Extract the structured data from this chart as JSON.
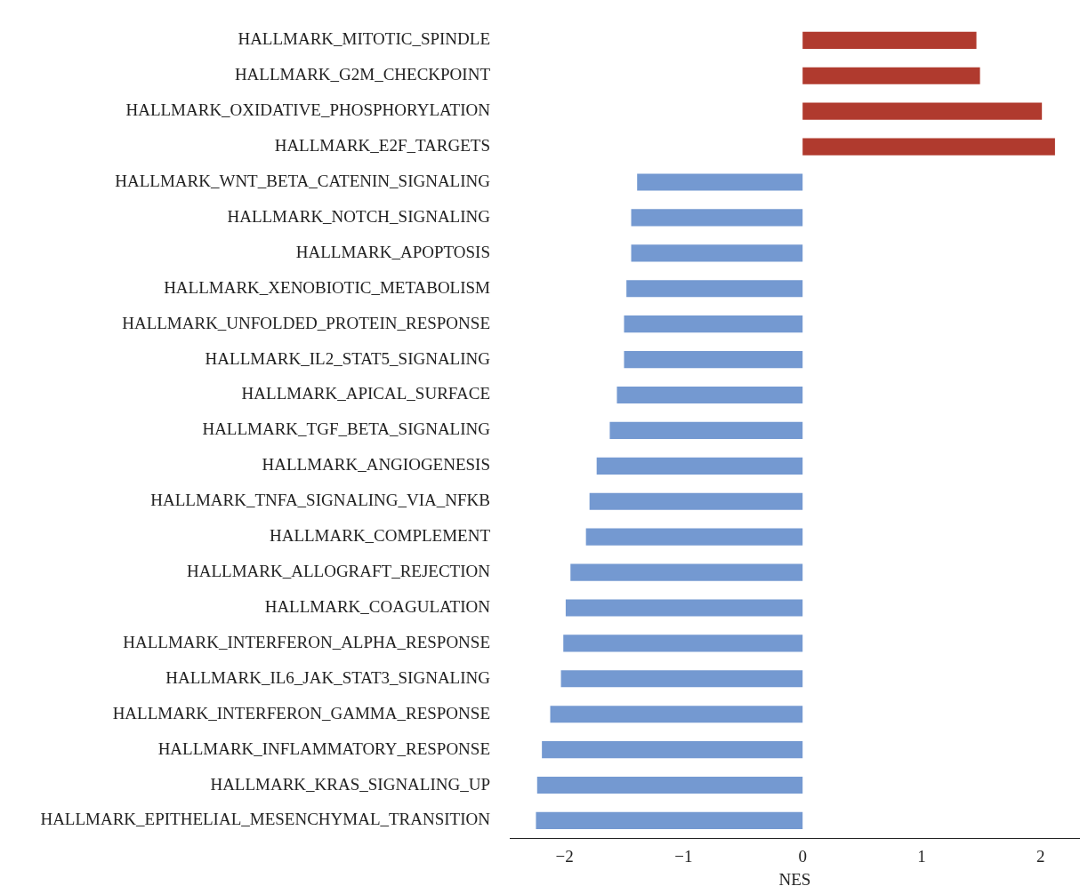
{
  "chart_data": {
    "type": "bar",
    "orientation": "horizontal",
    "xlabel": "NES",
    "categories": [
      "HALLMARK_MITOTIC_SPINDLE",
      "HALLMARK_G2M_CHECKPOINT",
      "HALLMARK_OXIDATIVE_PHOSPHORYLATION",
      "HALLMARK_E2F_TARGETS",
      "HALLMARK_WNT_BETA_CATENIN_SIGNALING",
      "HALLMARK_NOTCH_SIGNALING",
      "HALLMARK_APOPTOSIS",
      "HALLMARK_XENOBIOTIC_METABOLISM",
      "HALLMARK_UNFOLDED_PROTEIN_RESPONSE",
      "HALLMARK_IL2_STAT5_SIGNALING",
      "HALLMARK_APICAL_SURFACE",
      "HALLMARK_TGF_BETA_SIGNALING",
      "HALLMARK_ANGIOGENESIS",
      "HALLMARK_TNFA_SIGNALING_VIA_NFKB",
      "HALLMARK_COMPLEMENT",
      "HALLMARK_ALLOGRAFT_REJECTION",
      "HALLMARK_COAGULATION",
      "HALLMARK_INTERFERON_ALPHA_RESPONSE",
      "HALLMARK_IL6_JAK_STAT3_SIGNALING",
      "HALLMARK_INTERFERON_GAMMA_RESPONSE",
      "HALLMARK_INFLAMMATORY_RESPONSE",
      "HALLMARK_KRAS_SIGNALING_UP",
      "HALLMARK_EPITHELIAL_MESENCHYMAL_TRANSITION"
    ],
    "values": [
      1.46,
      1.49,
      2.01,
      2.12,
      -1.39,
      -1.44,
      -1.44,
      -1.48,
      -1.5,
      -1.5,
      -1.56,
      -1.62,
      -1.73,
      -1.79,
      -1.82,
      -1.95,
      -1.99,
      -2.01,
      -2.03,
      -2.12,
      -2.19,
      -2.23,
      -2.24
    ],
    "colors": [
      "#b03a2e",
      "#b03a2e",
      "#b03a2e",
      "#b03a2e",
      "#7499d1",
      "#7499d1",
      "#7499d1",
      "#7499d1",
      "#7499d1",
      "#7499d1",
      "#7499d1",
      "#7499d1",
      "#7499d1",
      "#7499d1",
      "#7499d1",
      "#7499d1",
      "#7499d1",
      "#7499d1",
      "#7499d1",
      "#7499d1",
      "#7499d1",
      "#7499d1",
      "#7499d1"
    ],
    "xlim": [
      -2.46,
      2.33
    ],
    "xticks": [
      {
        "value": -2,
        "label": "−2"
      },
      {
        "value": -1,
        "label": "−1"
      },
      0,
      1,
      2
    ],
    "grid": false,
    "legend": false
  }
}
